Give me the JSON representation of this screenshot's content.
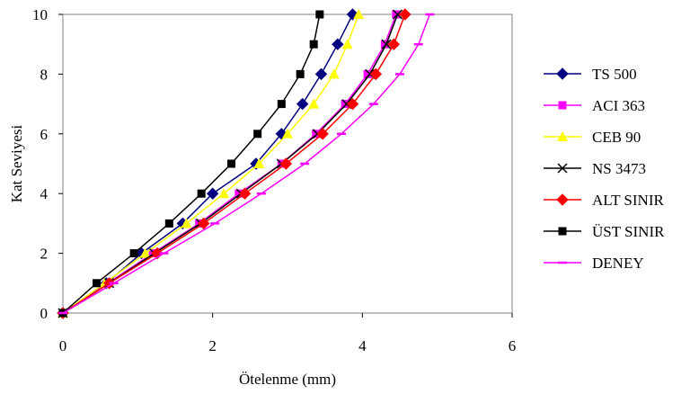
{
  "chart_data": {
    "type": "line",
    "xlabel": "Ötelenme (mm)",
    "ylabel": "Kat Seviyesi",
    "xlim": [
      0,
      6
    ],
    "ylim": [
      0,
      10
    ],
    "xticks": [
      "0",
      "2",
      "4",
      "6"
    ],
    "yticks": [
      "0",
      "2",
      "4",
      "6",
      "8",
      "10"
    ],
    "grid": false,
    "legend_position": "right",
    "series": [
      {
        "name": "TS 500",
        "color": "#000080",
        "marker": "diamond",
        "points": [
          [
            0,
            0
          ],
          [
            0.58,
            1
          ],
          [
            1.05,
            2
          ],
          [
            1.6,
            3
          ],
          [
            2.0,
            4
          ],
          [
            2.58,
            5
          ],
          [
            2.92,
            6
          ],
          [
            3.2,
            7
          ],
          [
            3.45,
            8
          ],
          [
            3.67,
            9
          ],
          [
            3.87,
            10
          ]
        ]
      },
      {
        "name": "ACI 363",
        "color": "#ff00ff",
        "marker": "square",
        "points": [
          [
            0,
            0
          ],
          [
            0.6,
            1
          ],
          [
            1.2,
            2
          ],
          [
            1.82,
            3
          ],
          [
            2.35,
            4
          ],
          [
            2.92,
            5
          ],
          [
            3.38,
            6
          ],
          [
            3.77,
            7
          ],
          [
            4.07,
            8
          ],
          [
            4.3,
            9
          ],
          [
            4.45,
            10
          ]
        ]
      },
      {
        "name": "CEB 90",
        "color": "#ffff00",
        "marker": "triangle",
        "points": [
          [
            0,
            0
          ],
          [
            0.56,
            1
          ],
          [
            1.1,
            2
          ],
          [
            1.65,
            3
          ],
          [
            2.15,
            4
          ],
          [
            2.62,
            5
          ],
          [
            3.0,
            6
          ],
          [
            3.35,
            7
          ],
          [
            3.62,
            8
          ],
          [
            3.8,
            9
          ],
          [
            3.95,
            10
          ]
        ]
      },
      {
        "name": "NS 3473",
        "color": "#000000",
        "marker": "x",
        "points": [
          [
            0,
            0
          ],
          [
            0.62,
            1
          ],
          [
            1.22,
            2
          ],
          [
            1.84,
            3
          ],
          [
            2.38,
            4
          ],
          [
            2.92,
            5
          ],
          [
            3.4,
            6
          ],
          [
            3.79,
            7
          ],
          [
            4.1,
            8
          ],
          [
            4.32,
            9
          ],
          [
            4.47,
            10
          ]
        ]
      },
      {
        "name": "ALT SINIR",
        "color": "#ff0000",
        "marker": "diamond",
        "points": [
          [
            0,
            0
          ],
          [
            0.62,
            1
          ],
          [
            1.26,
            2
          ],
          [
            1.88,
            3
          ],
          [
            2.43,
            4
          ],
          [
            2.98,
            5
          ],
          [
            3.47,
            6
          ],
          [
            3.87,
            7
          ],
          [
            4.18,
            8
          ],
          [
            4.42,
            9
          ],
          [
            4.57,
            10
          ]
        ]
      },
      {
        "name": "ÜST SINIR",
        "color": "#000000",
        "marker": "square",
        "points": [
          [
            0,
            0
          ],
          [
            0.45,
            1
          ],
          [
            0.95,
            2
          ],
          [
            1.42,
            3
          ],
          [
            1.85,
            4
          ],
          [
            2.25,
            5
          ],
          [
            2.6,
            6
          ],
          [
            2.92,
            7
          ],
          [
            3.17,
            8
          ],
          [
            3.35,
            9
          ],
          [
            3.43,
            10
          ]
        ]
      },
      {
        "name": "DENEY",
        "color": "#ff00ff",
        "marker": "dash",
        "points": [
          [
            0,
            0
          ],
          [
            0.68,
            1
          ],
          [
            1.35,
            2
          ],
          [
            2.03,
            3
          ],
          [
            2.65,
            4
          ],
          [
            3.23,
            5
          ],
          [
            3.72,
            6
          ],
          [
            4.15,
            7
          ],
          [
            4.5,
            8
          ],
          [
            4.75,
            9
          ],
          [
            4.9,
            10
          ]
        ]
      }
    ]
  }
}
